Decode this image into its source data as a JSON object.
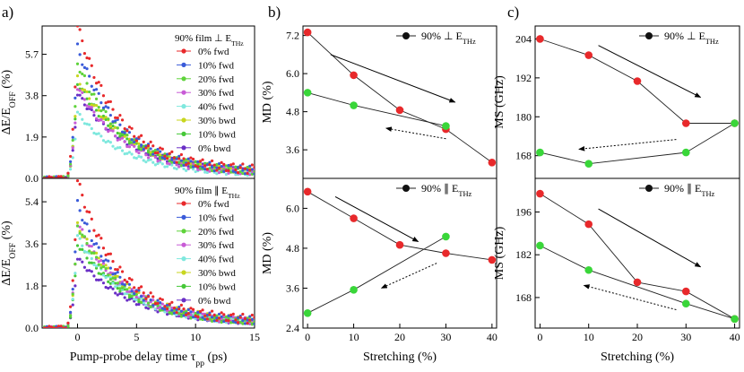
{
  "panel_letters": [
    "a)",
    "b)",
    "c)"
  ],
  "colors": {
    "s0": "#e8292b",
    "s10": "#3a5bd9",
    "s20": "#5fd33b",
    "s30": "#c85bd6",
    "s40": "#7fe8de",
    "s30b": "#c8d61f",
    "s10b": "#46c838",
    "s0b": "#6a2fc6",
    "red": "#e8292b",
    "green": "#39d639",
    "black": "#111111"
  },
  "chart_data": [
    {
      "id": "a_top",
      "type": "scatter",
      "ylabel": "ΔE/E_OFF (%)",
      "ylim": [
        0,
        7.0
      ],
      "xlim": [
        -3,
        15
      ],
      "yticks": [
        "0.0",
        "1.9",
        "3.8",
        "5.7"
      ],
      "xticks": [],
      "legend_title": "90% film ⊥ E_THz",
      "series": [
        {
          "name": "0% fwd",
          "key": "s0",
          "peak": 7.0
        },
        {
          "name": "10% fwd",
          "key": "s10",
          "peak": 6.0
        },
        {
          "name": "20% fwd",
          "key": "s20",
          "peak": 5.3
        },
        {
          "name": "30% fwd",
          "key": "s30",
          "peak": 4.2
        },
        {
          "name": "40% fwd",
          "key": "s40",
          "peak": 3.0
        },
        {
          "name": "30% bwd",
          "key": "s30b",
          "peak": 4.6
        },
        {
          "name": "10% bwd",
          "key": "s10b",
          "peak": 4.4
        },
        {
          "name": "0% bwd",
          "key": "s0b",
          "peak": 3.9
        }
      ]
    },
    {
      "id": "a_bot",
      "type": "scatter",
      "ylabel": "ΔE/E_OFF (%)",
      "xlabel": "Pump-probe delay time τ_pp (ps)",
      "ylim": [
        0,
        6.4
      ],
      "xlim": [
        -3,
        15
      ],
      "yticks": [
        "0.0",
        "1.8",
        "3.6",
        "5.4"
      ],
      "xticks": [
        "0",
        "5",
        "10",
        "15"
      ],
      "legend_title": "90% film ∥ E_THz",
      "series": [
        {
          "name": "0% fwd",
          "key": "s0",
          "peak": 6.3
        },
        {
          "name": "10% fwd",
          "key": "s10",
          "peak": 5.3
        },
        {
          "name": "20% fwd",
          "key": "s20",
          "peak": 4.4
        },
        {
          "name": "30% fwd",
          "key": "s30",
          "peak": 4.5
        },
        {
          "name": "40% fwd",
          "key": "s40",
          "peak": 3.9
        },
        {
          "name": "30% bwd",
          "key": "s30b",
          "peak": 4.4
        },
        {
          "name": "10% bwd",
          "key": "s10b",
          "peak": 3.6
        },
        {
          "name": "0% bwd",
          "key": "s0b",
          "peak": 3.0
        }
      ]
    },
    {
      "id": "b_top",
      "type": "line",
      "ylabel": "MD (%)",
      "ylim": [
        2.7,
        7.5
      ],
      "xlim": [
        -1,
        41
      ],
      "yticks": [
        "3.6",
        "4.8",
        "6.0",
        "7.2"
      ],
      "xticks": [],
      "legend": "90% ⊥ E_THz",
      "series": [
        {
          "name": "fwd",
          "key": "red",
          "x": [
            0,
            10,
            20,
            30,
            40
          ],
          "y": [
            7.3,
            5.95,
            4.85,
            4.25,
            3.2
          ]
        },
        {
          "name": "bwd",
          "key": "green",
          "x": [
            0,
            10,
            30
          ],
          "y": [
            5.4,
            5.0,
            4.35
          ]
        }
      ],
      "arrows": [
        {
          "x1": 5,
          "y1": 6.6,
          "x2": 32,
          "y2": 5.1,
          "dashed": false
        },
        {
          "x1": 30,
          "y1": 3.95,
          "x2": 17,
          "y2": 4.28,
          "dashed": true
        }
      ]
    },
    {
      "id": "b_bot",
      "type": "line",
      "ylabel": "MD (%)",
      "xlabel": "Stretching (%)",
      "ylim": [
        2.4,
        6.9
      ],
      "xlim": [
        -1,
        41
      ],
      "yticks": [
        "2.4",
        "3.6",
        "4.8",
        "6.0"
      ],
      "xticks": [
        "0",
        "10",
        "20",
        "30",
        "40"
      ],
      "legend": "90% ∥ E_THz",
      "series": [
        {
          "name": "fwd",
          "key": "red",
          "x": [
            0,
            10,
            20,
            30,
            40
          ],
          "y": [
            6.5,
            5.7,
            4.9,
            4.65,
            4.45
          ]
        },
        {
          "name": "bwd",
          "key": "green",
          "x": [
            0,
            10,
            30
          ],
          "y": [
            2.85,
            3.55,
            5.15
          ]
        }
      ],
      "arrows": [
        {
          "x1": 6,
          "y1": 6.35,
          "x2": 24,
          "y2": 5.0,
          "dashed": false
        },
        {
          "x1": 28,
          "y1": 4.35,
          "x2": 16,
          "y2": 3.6,
          "dashed": true
        }
      ]
    },
    {
      "id": "c_top",
      "type": "line",
      "ylabel": "MS (GHz)",
      "ylim": [
        161,
        208
      ],
      "xlim": [
        -1,
        41
      ],
      "yticks": [
        "168",
        "180",
        "192",
        "204"
      ],
      "xticks": [],
      "legend": "90% ⊥ E_THz",
      "series": [
        {
          "name": "fwd",
          "key": "red",
          "x": [
            0,
            10,
            20,
            30,
            40
          ],
          "y": [
            204,
            199,
            191,
            178,
            178
          ]
        },
        {
          "name": "bwd",
          "key": "green",
          "x": [
            0,
            10,
            30,
            40
          ],
          "y": [
            169,
            165.5,
            169,
            178
          ]
        }
      ],
      "arrows": [
        {
          "x1": 12,
          "y1": 202,
          "x2": 33,
          "y2": 186,
          "dashed": false
        },
        {
          "x1": 28,
          "y1": 173,
          "x2": 8,
          "y2": 170,
          "dashed": true
        }
      ]
    },
    {
      "id": "c_bot",
      "type": "line",
      "ylabel": "MS (GHz)",
      "xlabel": "Stretching (%)",
      "ylim": [
        158,
        207
      ],
      "xlim": [
        -1,
        41
      ],
      "yticks": [
        "168",
        "182",
        "196"
      ],
      "xticks": [
        "0",
        "10",
        "20",
        "30",
        "40"
      ],
      "legend": "90% ∥ E_THz",
      "series": [
        {
          "name": "fwd",
          "key": "red",
          "x": [
            0,
            10,
            20,
            30,
            40
          ],
          "y": [
            202,
            192,
            173,
            170,
            161
          ]
        },
        {
          "name": "bwd",
          "key": "green",
          "x": [
            0,
            10,
            30,
            40
          ],
          "y": [
            185,
            177,
            166,
            161
          ]
        }
      ],
      "arrows": [
        {
          "x1": 12,
          "y1": 197,
          "x2": 33,
          "y2": 178,
          "dashed": false
        },
        {
          "x1": 28,
          "y1": 164,
          "x2": 9,
          "y2": 172,
          "dashed": true
        }
      ]
    }
  ]
}
